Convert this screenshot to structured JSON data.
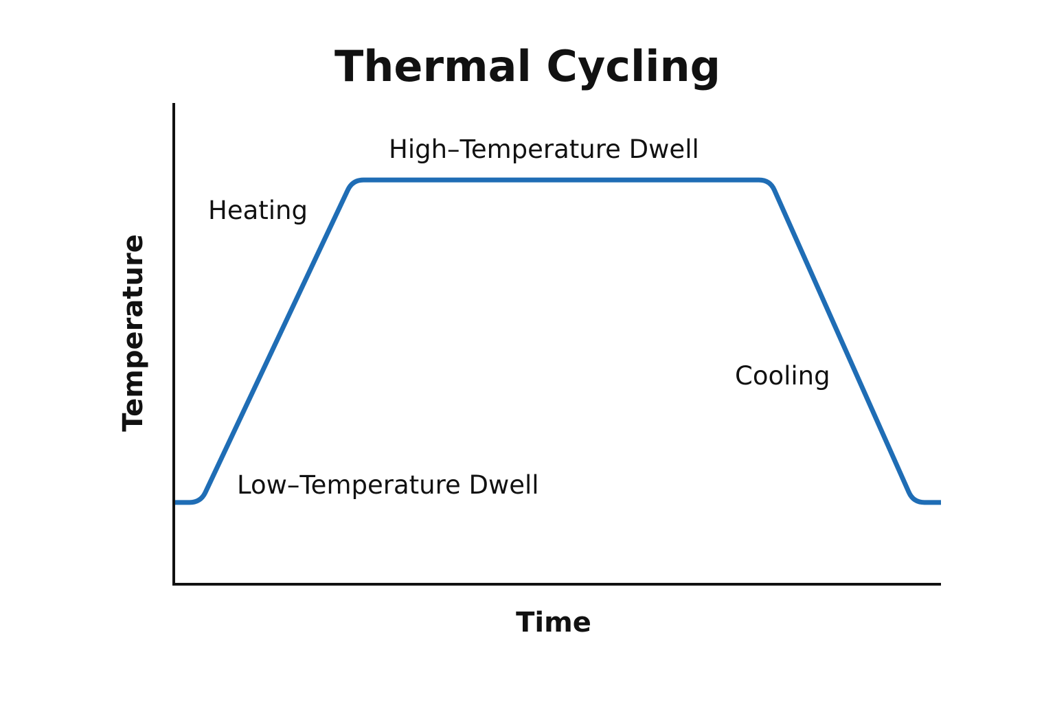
{
  "chart_data": {
    "type": "line",
    "title": "Thermal Cycling",
    "xlabel": "Time",
    "ylabel": "Temperature",
    "ticks": false,
    "grid": false,
    "xlim": [
      0,
      100
    ],
    "ylim": [
      0,
      100
    ],
    "line_color": "#1f6db5",
    "axis_color": "#111111",
    "series": [
      {
        "x": [
          0,
          3.5,
          23.3,
          77.7,
          96.4,
          100
        ],
        "y": [
          17,
          17,
          84,
          84,
          17,
          17
        ]
      }
    ],
    "annotations": [
      {
        "id": "heating",
        "text": "Heating"
      },
      {
        "id": "high_dwell",
        "text": "High–Temperature Dwell"
      },
      {
        "id": "cooling",
        "text": "Cooling"
      },
      {
        "id": "low_dwell",
        "text": "Low–Temperature Dwell"
      }
    ]
  }
}
